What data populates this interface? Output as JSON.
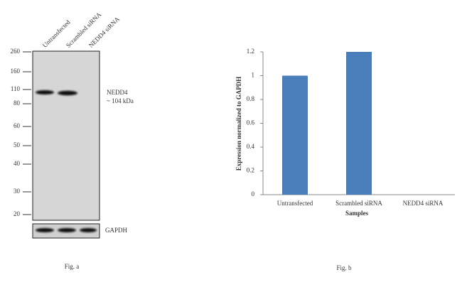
{
  "blot": {
    "lanes": [
      "Untransfected",
      "Scrambled siRNA",
      "NEDD4 siRNA"
    ],
    "markers": [
      260,
      160,
      110,
      80,
      60,
      50,
      40,
      30,
      20
    ],
    "target": "NEDD4",
    "target_size": "~ 104 kDa",
    "control": "GAPDH",
    "caption": "Fig. a"
  },
  "chart_data": {
    "type": "bar",
    "categories": [
      "Untransfected",
      "Scrambled siRNA",
      "NEDD4 siRNA"
    ],
    "values": [
      1,
      1.2,
      0
    ],
    "color": "#4a7ebb",
    "ylim": [
      0,
      1.2
    ],
    "yticks": [
      0,
      0.2,
      0.4,
      0.6,
      0.8,
      1,
      1.2
    ],
    "y_label": "Expression normalized to GAPDH",
    "x_label": "Samples",
    "caption": "Fig. b"
  }
}
